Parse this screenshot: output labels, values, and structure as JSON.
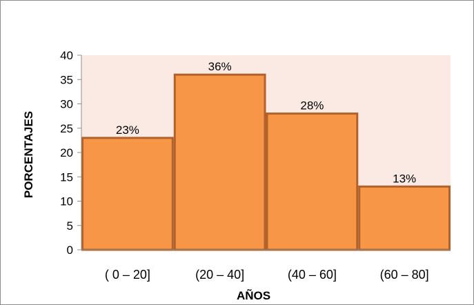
{
  "chart_data": {
    "type": "bar",
    "categories": [
      "( 0 – 20]",
      "(20 – 40]",
      "(40 – 60]",
      "(60 – 80]"
    ],
    "values": [
      23,
      36,
      28,
      13
    ],
    "data_labels": [
      "23%",
      "36%",
      "28%",
      "13%"
    ],
    "xlabel": "AÑOS",
    "ylabel": "PORCENTAJES",
    "ylim": [
      0,
      40
    ],
    "yticks": [
      0,
      5,
      10,
      15,
      20,
      25,
      30,
      35,
      40
    ],
    "grid": false,
    "legend": "none",
    "colors": {
      "bar_fill": "#F79646",
      "bar_edge": "#B0622A",
      "plot_background": "#FBEAE3",
      "axis": "#8C8C8C"
    }
  }
}
